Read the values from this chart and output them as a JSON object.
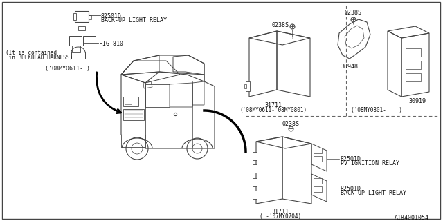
{
  "bg_color": "#ffffff",
  "line_color": "#444444",
  "fig_number": "A184001054",
  "parts": {
    "top_left_relay": {
      "label1": "82501D",
      "label2": "BACK-UP LIGHT RELAY",
      "fig_ref": "FIG.810",
      "fig_note1": "(It is contained",
      "fig_note2": " in BULKHEAD HARNESS)",
      "date_note": "('08MY0611- )"
    },
    "top_mid_unit": {
      "connector_label": "0238S",
      "part_num": "31711",
      "date_note": "('08MY0611-'08MY0801)"
    },
    "top_right_unit": {
      "connector_label": "0238S",
      "part_num1": "30948",
      "part_num2": "30919",
      "date_note": "('08MY0801-    )"
    },
    "bot_unit": {
      "connector_label": "0238S",
      "part_num": "31711",
      "date_note": "( -'07MY0704)",
      "relay1_label1": "82501D",
      "relay1_label2": "PV IGNITION RELAY",
      "relay2_label1": "82501D",
      "relay2_label2": "BACK-UP LIGHT RELAY"
    }
  }
}
